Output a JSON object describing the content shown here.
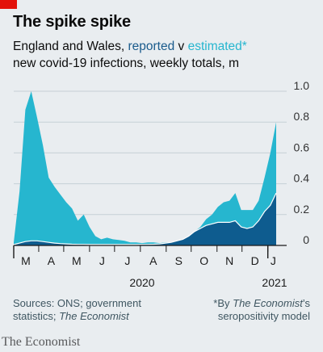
{
  "title": "The spike spike",
  "subtitle": {
    "prefix": "England and Wales, ",
    "reported": "reported",
    "connector": " v ",
    "estimated": "estimated*",
    "line2": "new covid-19 infections, weekly totals, m"
  },
  "colors": {
    "accent": "#e3120b",
    "estimated": "#26b6cf",
    "reported": "#0e5c8f",
    "grid": "#c6d0d6",
    "background": "#e9edf0"
  },
  "chart_data": {
    "type": "area",
    "ylim": [
      0,
      1.0
    ],
    "y_ticks": [
      "1.0",
      "0.8",
      "0.6",
      "0.4",
      "0.2",
      "0"
    ],
    "x_tick_labels": [
      "M",
      "A",
      "M",
      "J",
      "J",
      "A",
      "S",
      "O",
      "N",
      "D",
      "J"
    ],
    "year_labels": [
      "2020",
      "2021"
    ],
    "x_week_start": "2020-03-02",
    "series": [
      {
        "name": "estimated",
        "values": [
          0.02,
          0.35,
          0.88,
          1.0,
          0.83,
          0.65,
          0.44,
          0.38,
          0.33,
          0.28,
          0.24,
          0.16,
          0.2,
          0.12,
          0.06,
          0.04,
          0.05,
          0.04,
          0.035,
          0.03,
          0.02,
          0.02,
          0.015,
          0.02,
          0.02,
          0.015,
          0.02,
          0.02,
          0.03,
          0.04,
          0.06,
          0.09,
          0.12,
          0.17,
          0.2,
          0.25,
          0.28,
          0.29,
          0.34,
          0.23,
          0.23,
          0.23,
          0.29,
          0.44,
          0.6,
          0.8
        ]
      },
      {
        "name": "reported",
        "values": [
          0.005,
          0.015,
          0.025,
          0.03,
          0.03,
          0.025,
          0.02,
          0.015,
          0.012,
          0.01,
          0.008,
          0.007,
          0.007,
          0.006,
          0.006,
          0.006,
          0.006,
          0.006,
          0.006,
          0.006,
          0.006,
          0.006,
          0.007,
          0.007,
          0.008,
          0.01,
          0.015,
          0.02,
          0.03,
          0.04,
          0.06,
          0.09,
          0.11,
          0.13,
          0.14,
          0.15,
          0.15,
          0.15,
          0.16,
          0.12,
          0.11,
          0.12,
          0.16,
          0.22,
          0.26,
          0.34
        ]
      }
    ]
  },
  "sources": {
    "line1": "Sources: ONS; government",
    "line2_prefix": "statistics; ",
    "line2_italic": "The Economist"
  },
  "footnote": {
    "line1_prefix": "*By ",
    "line1_italic": "The Economist",
    "line1_suffix": "’s",
    "line2": "seropositivity model"
  },
  "brand": "The Economist"
}
